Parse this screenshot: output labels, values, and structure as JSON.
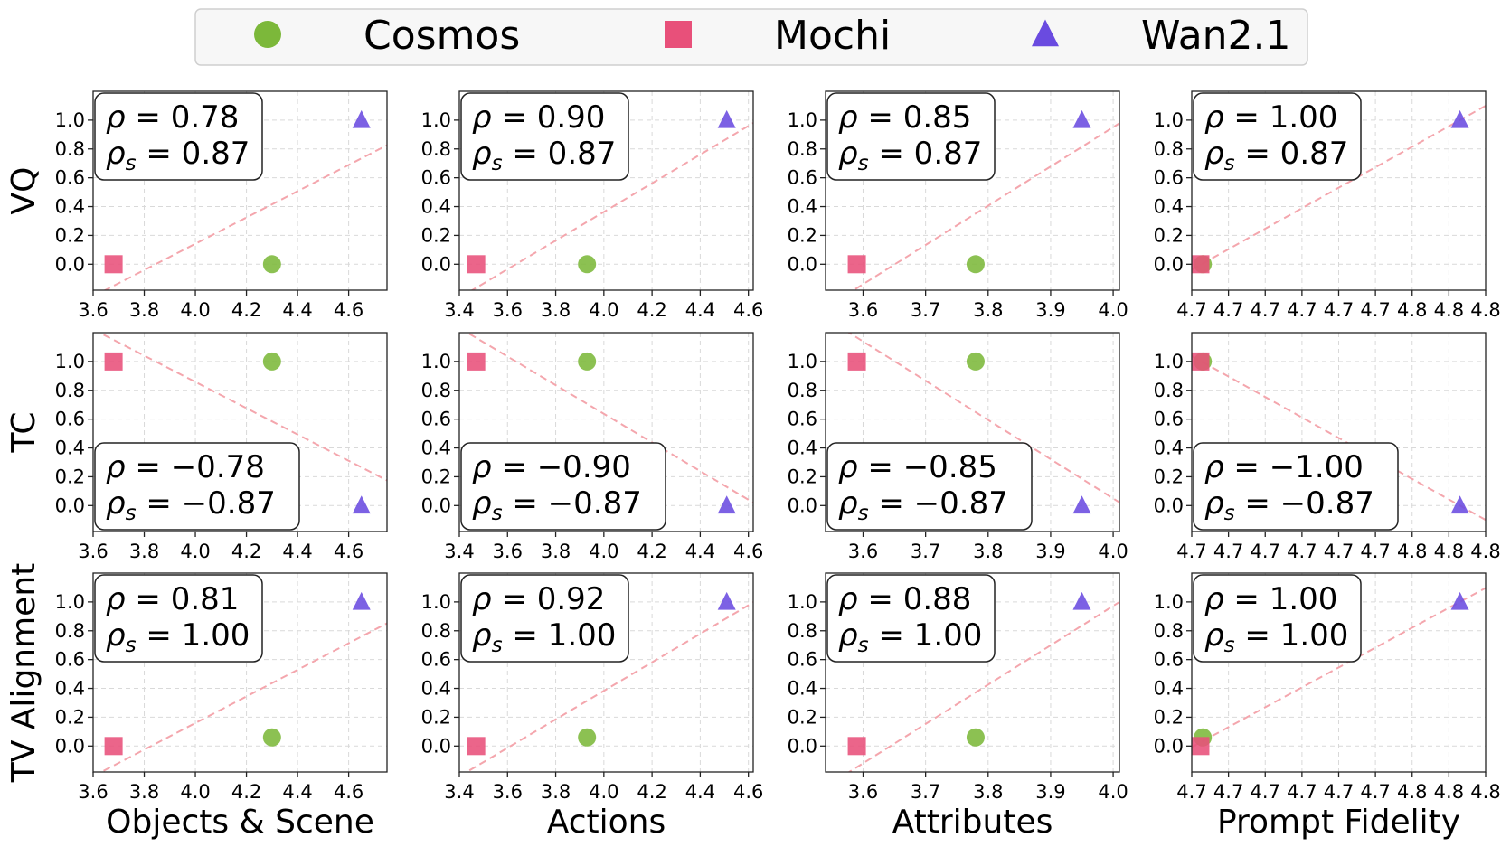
{
  "legend": {
    "entries": [
      {
        "label": "Cosmos",
        "marker": "circle",
        "color": "#7cb83a"
      },
      {
        "label": "Mochi",
        "marker": "square",
        "color": "#e8507a"
      },
      {
        "label": "Wan2.1",
        "marker": "triangle",
        "color": "#6a4be0"
      }
    ]
  },
  "row_labels": [
    "VQ",
    "TC",
    "TV Alignment"
  ],
  "col_labels": [
    "Objects & Scene",
    "Actions",
    "Attributes",
    "Prompt Fidelity"
  ],
  "chart_data": {
    "type": "scatter",
    "layout": "3x4 grid",
    "columns": [
      {
        "name": "Objects & Scene",
        "xlim": [
          3.6,
          4.75
        ],
        "ticks": [
          3.6,
          3.8,
          4.0,
          4.2,
          4.4,
          4.6
        ],
        "tick_labels": [
          "3.6",
          "3.8",
          "4.0",
          "4.2",
          "4.4",
          "4.6"
        ],
        "x": {
          "Cosmos": 4.3,
          "Mochi": 3.68,
          "Wan2.1": 4.65
        }
      },
      {
        "name": "Actions",
        "xlim": [
          3.4,
          4.62
        ],
        "ticks": [
          3.4,
          3.6,
          3.8,
          4.0,
          4.2,
          4.4,
          4.6
        ],
        "tick_labels": [
          "3.4",
          "3.6",
          "3.8",
          "4.0",
          "4.2",
          "4.4",
          "4.6"
        ],
        "x": {
          "Cosmos": 3.93,
          "Mochi": 3.47,
          "Wan2.1": 4.51
        }
      },
      {
        "name": "Attributes",
        "xlim": [
          3.54,
          4.01
        ],
        "ticks": [
          3.6,
          3.7,
          3.8,
          3.9,
          4.0
        ],
        "tick_labels": [
          "3.6",
          "3.7",
          "3.8",
          "3.9",
          "4.0"
        ],
        "x": {
          "Cosmos": 3.78,
          "Mochi": 3.59,
          "Wan2.1": 3.95
        }
      },
      {
        "name": "Prompt Fidelity",
        "xlim": [
          4.7,
          4.82
        ],
        "ticks": [
          4.7,
          4.715,
          4.73,
          4.745,
          4.76,
          4.775,
          4.79,
          4.805,
          4.82
        ],
        "tick_labels": [
          "4.7",
          "4.7",
          "4.7",
          "4.7",
          "4.7",
          "4.7",
          "4.8",
          "4.8",
          "4.8"
        ],
        "x": {
          "Cosmos": 4.7045,
          "Mochi": 4.7035,
          "Wan2.1": 4.8095
        }
      }
    ],
    "rows": [
      {
        "name": "VQ",
        "y": {
          "Cosmos": 0.0,
          "Mochi": 0.0,
          "Wan2.1": 1.0
        }
      },
      {
        "name": "TC",
        "y": {
          "Cosmos": 1.0,
          "Mochi": 1.0,
          "Wan2.1": 0.0
        }
      },
      {
        "name": "TV Alignment",
        "y": {
          "Cosmos": 0.06,
          "Mochi": 0.0,
          "Wan2.1": 1.0
        }
      }
    ],
    "ylim": [
      -0.18,
      1.2
    ],
    "yticks": [
      0.0,
      0.2,
      0.4,
      0.6,
      0.8,
      1.0
    ],
    "ytick_labels": [
      "0.0",
      "0.2",
      "0.4",
      "0.6",
      "0.8",
      "1.0"
    ],
    "grid": true,
    "trendline": "least-squares fit, dashed",
    "stats": [
      [
        {
          "rho": "0.78",
          "rho_s": "0.87",
          "box": "top-left"
        },
        {
          "rho": "0.90",
          "rho_s": "0.87",
          "box": "top-left"
        },
        {
          "rho": "0.85",
          "rho_s": "0.87",
          "box": "top-left"
        },
        {
          "rho": "1.00",
          "rho_s": "0.87",
          "box": "top-left"
        }
      ],
      [
        {
          "rho": "−0.78",
          "rho_s": "−0.87",
          "box": "bottom-left"
        },
        {
          "rho": "−0.90",
          "rho_s": "−0.87",
          "box": "bottom-left"
        },
        {
          "rho": "−0.85",
          "rho_s": "−0.87",
          "box": "bottom-left"
        },
        {
          "rho": "−1.00",
          "rho_s": "−0.87",
          "box": "bottom-left"
        }
      ],
      [
        {
          "rho": "0.81",
          "rho_s": "1.00",
          "box": "top-left"
        },
        {
          "rho": "0.92",
          "rho_s": "1.00",
          "box": "top-left"
        },
        {
          "rho": "0.88",
          "rho_s": "1.00",
          "box": "top-left"
        },
        {
          "rho": "1.00",
          "rho_s": "1.00",
          "box": "top-left"
        }
      ]
    ]
  }
}
